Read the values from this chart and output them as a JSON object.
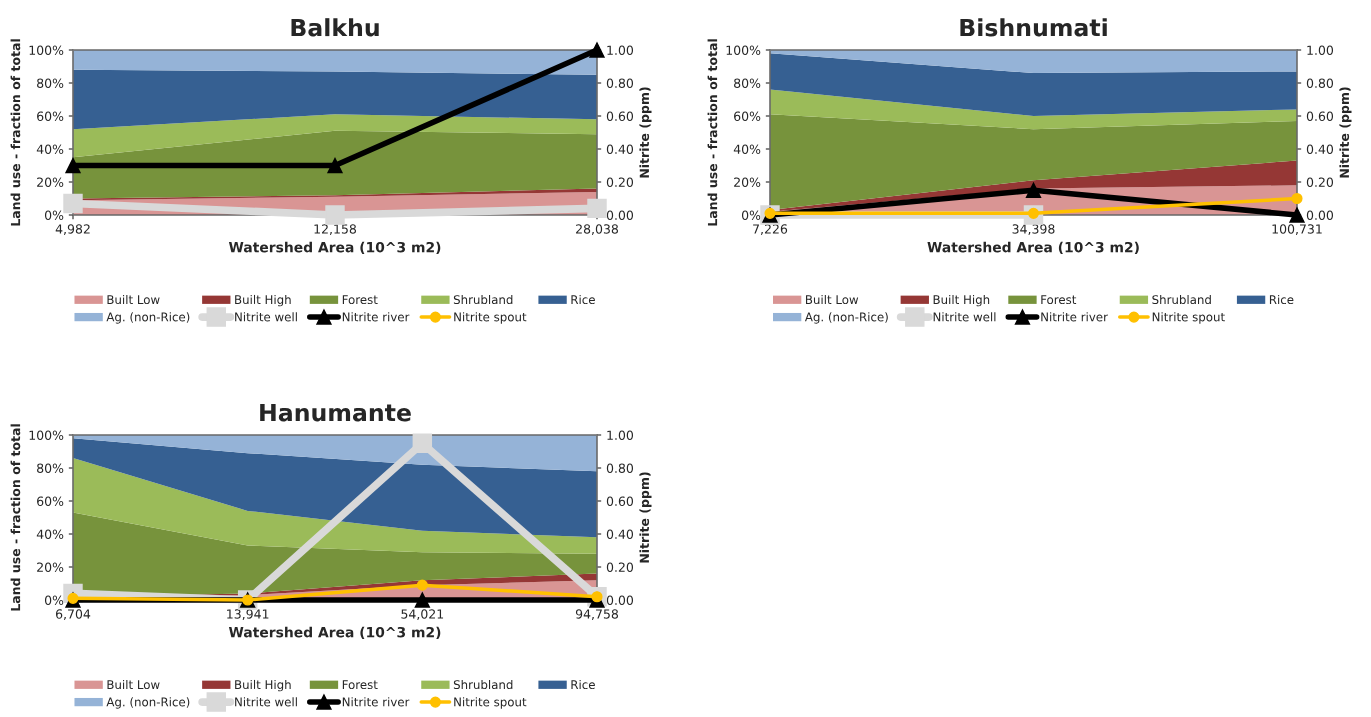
{
  "chart_data": [
    {
      "type": "area",
      "title": "Balkhu",
      "xlabel": "Watershed Area (10^3 m2)",
      "ylabel": "Land use - fraction of total",
      "y2label": "Nitrite (ppm)",
      "stacked": true,
      "legend": "bottom",
      "grid": false,
      "categories": [
        "4,982",
        "12,158",
        "28,038"
      ],
      "ylim": [
        0,
        100
      ],
      "yticks": [
        {
          "value": 0,
          "label": "0%"
        },
        {
          "value": 20,
          "label": "20%"
        },
        {
          "value": 40,
          "label": "40%"
        },
        {
          "value": 60,
          "label": "60%"
        },
        {
          "value": 80,
          "label": "80%"
        },
        {
          "value": 100,
          "label": "100%"
        }
      ],
      "y2lim": [
        0,
        1
      ],
      "y2ticks": [
        {
          "value": 0,
          "label": "0.00"
        },
        {
          "value": 0.2,
          "label": "0.20"
        },
        {
          "value": 0.4,
          "label": "0.40"
        },
        {
          "value": 0.6,
          "label": "0.60"
        },
        {
          "value": 0.8,
          "label": "0.80"
        },
        {
          "value": 1,
          "label": "1.00"
        }
      ],
      "series": [
        {
          "name": "Built Low",
          "color": "#d99594",
          "values": [
            9,
            11,
            14
          ]
        },
        {
          "name": "Built High",
          "color": "#953735",
          "values": [
            1,
            1,
            2
          ]
        },
        {
          "name": "Forest",
          "color": "#77933c",
          "values": [
            25,
            39,
            33
          ]
        },
        {
          "name": "Shrubland",
          "color": "#9bbb59",
          "values": [
            17,
            10,
            9
          ]
        },
        {
          "name": "Rice",
          "color": "#366092",
          "values": [
            36,
            26,
            27
          ]
        },
        {
          "name": "Ag. (non-Rice)",
          "color": "#95b3d7",
          "values": [
            12,
            13,
            15
          ]
        },
        {
          "name": "Nitrite well",
          "type": "line",
          "axis": "y2",
          "marker": "square",
          "color": "#d9d9d9",
          "values": [
            0.07,
            0.0,
            0.04
          ]
        },
        {
          "name": "Nitrite river",
          "type": "line",
          "axis": "y2",
          "marker": "triangle",
          "color": "#000000",
          "values": [
            0.3,
            0.3,
            1.0
          ]
        },
        {
          "name": "Nitrite spout",
          "type": "line",
          "axis": "y2",
          "marker": "circle",
          "color": "#ffc000",
          "values": [
            null,
            null,
            null
          ]
        }
      ]
    },
    {
      "type": "area",
      "title": "Bishnumati",
      "xlabel": "Watershed Area (10^3 m2)",
      "ylabel": "Land use - fraction of total",
      "y2label": "Nitrite (ppm)",
      "stacked": true,
      "legend": "bottom",
      "grid": false,
      "categories": [
        "7,226",
        "34,398",
        "100,731"
      ],
      "ylim": [
        0,
        100
      ],
      "yticks": [
        {
          "value": 0,
          "label": "0%"
        },
        {
          "value": 20,
          "label": "20%"
        },
        {
          "value": 40,
          "label": "40%"
        },
        {
          "value": 60,
          "label": "60%"
        },
        {
          "value": 80,
          "label": "80%"
        },
        {
          "value": 100,
          "label": "100%"
        }
      ],
      "y2lim": [
        0,
        1
      ],
      "y2ticks": [
        {
          "value": 0,
          "label": "0.00"
        },
        {
          "value": 0.2,
          "label": "0.20"
        },
        {
          "value": 0.4,
          "label": "0.40"
        },
        {
          "value": 0.6,
          "label": "0.60"
        },
        {
          "value": 0.8,
          "label": "0.80"
        },
        {
          "value": 1,
          "label": "1.00"
        }
      ],
      "series": [
        {
          "name": "Built Low",
          "color": "#d99594",
          "values": [
            2,
            16,
            18
          ]
        },
        {
          "name": "Built High",
          "color": "#953735",
          "values": [
            1,
            5,
            15
          ]
        },
        {
          "name": "Forest",
          "color": "#77933c",
          "values": [
            58,
            31,
            24
          ]
        },
        {
          "name": "Shrubland",
          "color": "#9bbb59",
          "values": [
            15,
            8,
            7
          ]
        },
        {
          "name": "Rice",
          "color": "#366092",
          "values": [
            22,
            26,
            23
          ]
        },
        {
          "name": "Ag. (non-Rice)",
          "color": "#95b3d7",
          "values": [
            2,
            14,
            13
          ]
        },
        {
          "name": "Nitrite well",
          "type": "line",
          "axis": "y2",
          "marker": "square",
          "color": "#d9d9d9",
          "values": [
            0.0,
            0.0,
            null
          ]
        },
        {
          "name": "Nitrite river",
          "type": "line",
          "axis": "y2",
          "marker": "triangle",
          "color": "#000000",
          "values": [
            0.0,
            0.15,
            0.0
          ]
        },
        {
          "name": "Nitrite spout",
          "type": "line",
          "axis": "y2",
          "marker": "circle",
          "color": "#ffc000",
          "values": [
            0.01,
            0.01,
            0.1
          ]
        }
      ]
    },
    {
      "type": "area",
      "title": "Hanumante",
      "xlabel": "Watershed Area (10^3 m2)",
      "ylabel": "Land use - fraction of total",
      "y2label": "Nitrite (ppm)",
      "stacked": true,
      "legend": "bottom",
      "grid": false,
      "categories": [
        "6,704",
        "13,941",
        "54,021",
        "94,758"
      ],
      "ylim": [
        0,
        100
      ],
      "yticks": [
        {
          "value": 0,
          "label": "0%"
        },
        {
          "value": 20,
          "label": "20%"
        },
        {
          "value": 40,
          "label": "40%"
        },
        {
          "value": 60,
          "label": "60%"
        },
        {
          "value": 80,
          "label": "80%"
        },
        {
          "value": 100,
          "label": "100%"
        }
      ],
      "y2lim": [
        0,
        1
      ],
      "y2ticks": [
        {
          "value": 0,
          "label": "0.00"
        },
        {
          "value": 0.2,
          "label": "0.20"
        },
        {
          "value": 0.4,
          "label": "0.40"
        },
        {
          "value": 0.6,
          "label": "0.60"
        },
        {
          "value": 0.8,
          "label": "0.80"
        },
        {
          "value": 1,
          "label": "1.00"
        }
      ],
      "series": [
        {
          "name": "Built Low",
          "color": "#d99594",
          "values": [
            1,
            3,
            9,
            12
          ]
        },
        {
          "name": "Built High",
          "color": "#953735",
          "values": [
            1,
            1,
            3,
            4
          ]
        },
        {
          "name": "Forest",
          "color": "#77933c",
          "values": [
            51,
            29,
            17,
            12
          ]
        },
        {
          "name": "Shrubland",
          "color": "#9bbb59",
          "values": [
            33,
            21,
            13,
            10
          ]
        },
        {
          "name": "Rice",
          "color": "#366092",
          "values": [
            12,
            35,
            40,
            40
          ]
        },
        {
          "name": "Ag. (non-Rice)",
          "color": "#95b3d7",
          "values": [
            2,
            11,
            18,
            22
          ]
        },
        {
          "name": "Nitrite well",
          "type": "line",
          "axis": "y2",
          "marker": "square",
          "color": "#d9d9d9",
          "values": [
            0.04,
            0.0,
            0.95,
            0.02
          ]
        },
        {
          "name": "Nitrite river",
          "type": "line",
          "axis": "y2",
          "marker": "triangle",
          "color": "#000000",
          "values": [
            0.0,
            0.0,
            0.0,
            0.0
          ]
        },
        {
          "name": "Nitrite spout",
          "type": "line",
          "axis": "y2",
          "marker": "circle",
          "color": "#ffc000",
          "values": [
            0.01,
            0.0,
            0.09,
            0.02
          ]
        }
      ]
    }
  ]
}
